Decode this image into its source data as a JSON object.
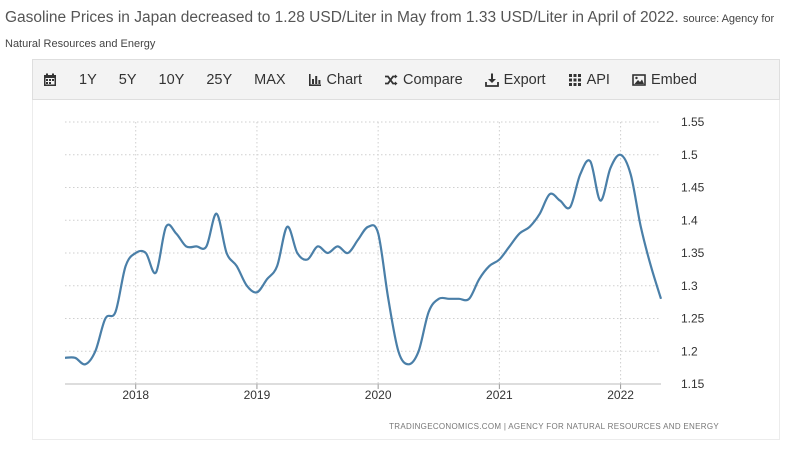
{
  "headline": {
    "text": "Gasoline Prices in Japan decreased to 1.28 USD/Liter in May from 1.33 USD/Liter in April of 2022.",
    "source_label": "source: Agency for Natural Resources and Energy"
  },
  "toolbar": {
    "ranges": [
      "1Y",
      "5Y",
      "10Y",
      "25Y",
      "MAX"
    ],
    "tools": [
      {
        "label": "Chart",
        "icon": "bar-chart-icon"
      },
      {
        "label": "Compare",
        "icon": "shuffle-icon"
      },
      {
        "label": "Export",
        "icon": "download-icon"
      },
      {
        "label": "API",
        "icon": "grid-icon"
      },
      {
        "label": "Embed",
        "icon": "image-icon"
      }
    ]
  },
  "footer": {
    "credit": "TRADINGECONOMICS.COM  |  AGENCY FOR NATURAL RESOURCES AND ENERGY"
  },
  "colors": {
    "line": "#4a7fa8",
    "grid": "#cfcfcf",
    "axis_text": "#333333"
  },
  "chart_data": {
    "type": "line",
    "title": "",
    "xlabel": "",
    "ylabel": "",
    "ylim": [
      1.15,
      1.55
    ],
    "yticks": [
      1.15,
      1.2,
      1.25,
      1.3,
      1.35,
      1.4,
      1.45,
      1.5,
      1.55
    ],
    "ytick_labels": [
      "1.15",
      "1.2",
      "1.25",
      "1.3",
      "1.35",
      "1.4",
      "1.45",
      "1.5",
      "1.55"
    ],
    "xlim": [
      "2017-06",
      "2022-05"
    ],
    "xticks": [
      "2018-01",
      "2019-01",
      "2020-01",
      "2021-01",
      "2022-01"
    ],
    "xtick_labels": [
      "2018",
      "2019",
      "2020",
      "2021",
      "2022"
    ],
    "grid": true,
    "y_axis_position": "right",
    "series": [
      {
        "name": "",
        "x": [
          "2017-06",
          "2017-07",
          "2017-08",
          "2017-09",
          "2017-10",
          "2017-11",
          "2017-12",
          "2018-01",
          "2018-02",
          "2018-03",
          "2018-04",
          "2018-05",
          "2018-06",
          "2018-07",
          "2018-08",
          "2018-09",
          "2018-10",
          "2018-11",
          "2018-12",
          "2019-01",
          "2019-02",
          "2019-03",
          "2019-04",
          "2019-05",
          "2019-06",
          "2019-07",
          "2019-08",
          "2019-09",
          "2019-10",
          "2019-11",
          "2019-12",
          "2020-01",
          "2020-02",
          "2020-03",
          "2020-04",
          "2020-05",
          "2020-06",
          "2020-07",
          "2020-08",
          "2020-09",
          "2020-10",
          "2020-11",
          "2020-12",
          "2021-01",
          "2021-02",
          "2021-03",
          "2021-04",
          "2021-05",
          "2021-06",
          "2021-07",
          "2021-08",
          "2021-09",
          "2021-10",
          "2021-11",
          "2021-12",
          "2022-01",
          "2022-02",
          "2022-03",
          "2022-04",
          "2022-05"
        ],
        "values": [
          1.19,
          1.19,
          1.18,
          1.2,
          1.25,
          1.26,
          1.33,
          1.35,
          1.35,
          1.32,
          1.39,
          1.38,
          1.36,
          1.36,
          1.36,
          1.41,
          1.35,
          1.33,
          1.3,
          1.29,
          1.31,
          1.33,
          1.39,
          1.35,
          1.34,
          1.36,
          1.35,
          1.36,
          1.35,
          1.37,
          1.39,
          1.38,
          1.28,
          1.2,
          1.18,
          1.2,
          1.26,
          1.28,
          1.28,
          1.28,
          1.28,
          1.31,
          1.33,
          1.34,
          1.36,
          1.38,
          1.39,
          1.41,
          1.44,
          1.43,
          1.42,
          1.47,
          1.49,
          1.43,
          1.48,
          1.5,
          1.47,
          1.39,
          1.33,
          1.28
        ]
      }
    ]
  }
}
